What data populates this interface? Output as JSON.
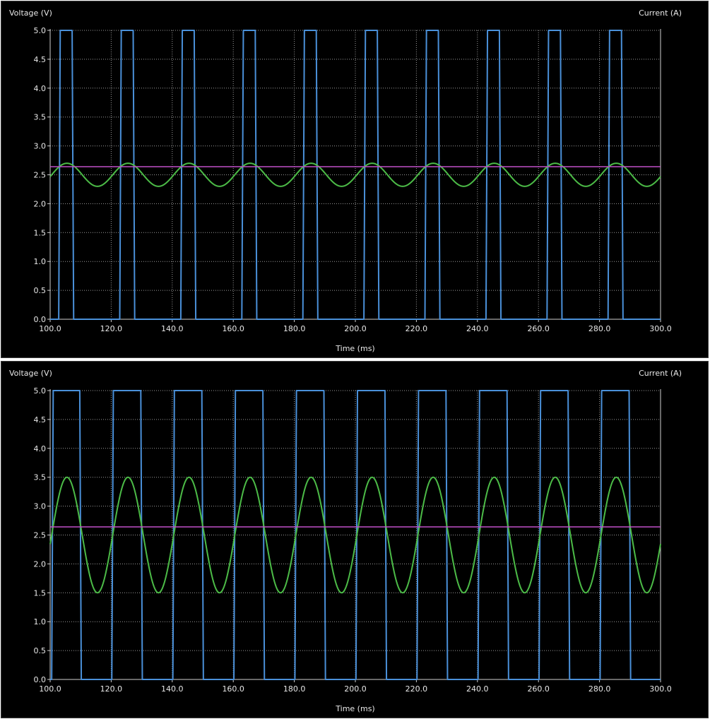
{
  "chart_data": [
    {
      "type": "line",
      "title": "",
      "ylabel": "Voltage (V)",
      "y2label": "Current (A)",
      "xlabel": "Time (ms)",
      "xlim": [
        100,
        300
      ],
      "ylim": [
        0,
        5
      ],
      "grid": true,
      "x_ticks": [
        "100.0",
        "120.0",
        "140.0",
        "160.0",
        "180.0",
        "200.0",
        "220.0",
        "240.0",
        "260.0",
        "280.0",
        "300.0"
      ],
      "y_ticks": [
        "0.0",
        "0.5",
        "1.0",
        "1.5",
        "2.0",
        "2.5",
        "3.0",
        "3.5",
        "4.0",
        "4.5",
        "5.0"
      ],
      "series": [
        {
          "color": "#4a90d9",
          "kind": "pulse",
          "low": 0,
          "high": 5,
          "pulses": [
            [
              102.8,
              107.2
            ],
            [
              122.8,
              127.2
            ],
            [
              142.8,
              147.2
            ],
            [
              162.8,
              167.2
            ],
            [
              182.8,
              187.2
            ],
            [
              202.8,
              207.2
            ],
            [
              222.8,
              227.2
            ],
            [
              242.8,
              247.2
            ],
            [
              262.8,
              267.2
            ],
            [
              282.8,
              287.2
            ]
          ]
        },
        {
          "color": "#4cbb47",
          "kind": "sine",
          "offset": 2.5,
          "amplitude": 0.2,
          "period": 20,
          "peak_at": 105.5
        },
        {
          "color": "#c050c8",
          "kind": "constant",
          "value": 2.64
        }
      ]
    },
    {
      "type": "line",
      "title": "",
      "ylabel": "Voltage (V)",
      "y2label": "Current (A)",
      "xlabel": "Time (ms)",
      "xlim": [
        100,
        300
      ],
      "ylim": [
        0,
        5
      ],
      "grid": true,
      "x_ticks": [
        "100.0",
        "120.0",
        "140.0",
        "160.0",
        "180.0",
        "200.0",
        "220.0",
        "240.0",
        "260.0",
        "280.0",
        "300.0"
      ],
      "y_ticks": [
        "0.0",
        "0.5",
        "1.0",
        "1.5",
        "2.0",
        "2.5",
        "3.0",
        "3.5",
        "4.0",
        "4.5",
        "5.0"
      ],
      "series": [
        {
          "color": "#4a90d9",
          "kind": "pulse",
          "low": 0,
          "high": 5,
          "pulses": [
            [
              100.5,
              109.7
            ],
            [
              120.2,
              129.7
            ],
            [
              140.2,
              149.7
            ],
            [
              160.2,
              169.7
            ],
            [
              180.2,
              189.7
            ],
            [
              200.2,
              209.7
            ],
            [
              220.2,
              229.7
            ],
            [
              240.2,
              249.7
            ],
            [
              260.2,
              269.7
            ],
            [
              280.2,
              289.7
            ]
          ]
        },
        {
          "color": "#4cbb47",
          "kind": "sine",
          "offset": 2.5,
          "amplitude": 1.0,
          "period": 20,
          "peak_at": 105.5
        },
        {
          "color": "#c050c8",
          "kind": "constant",
          "value": 2.64
        }
      ]
    }
  ]
}
